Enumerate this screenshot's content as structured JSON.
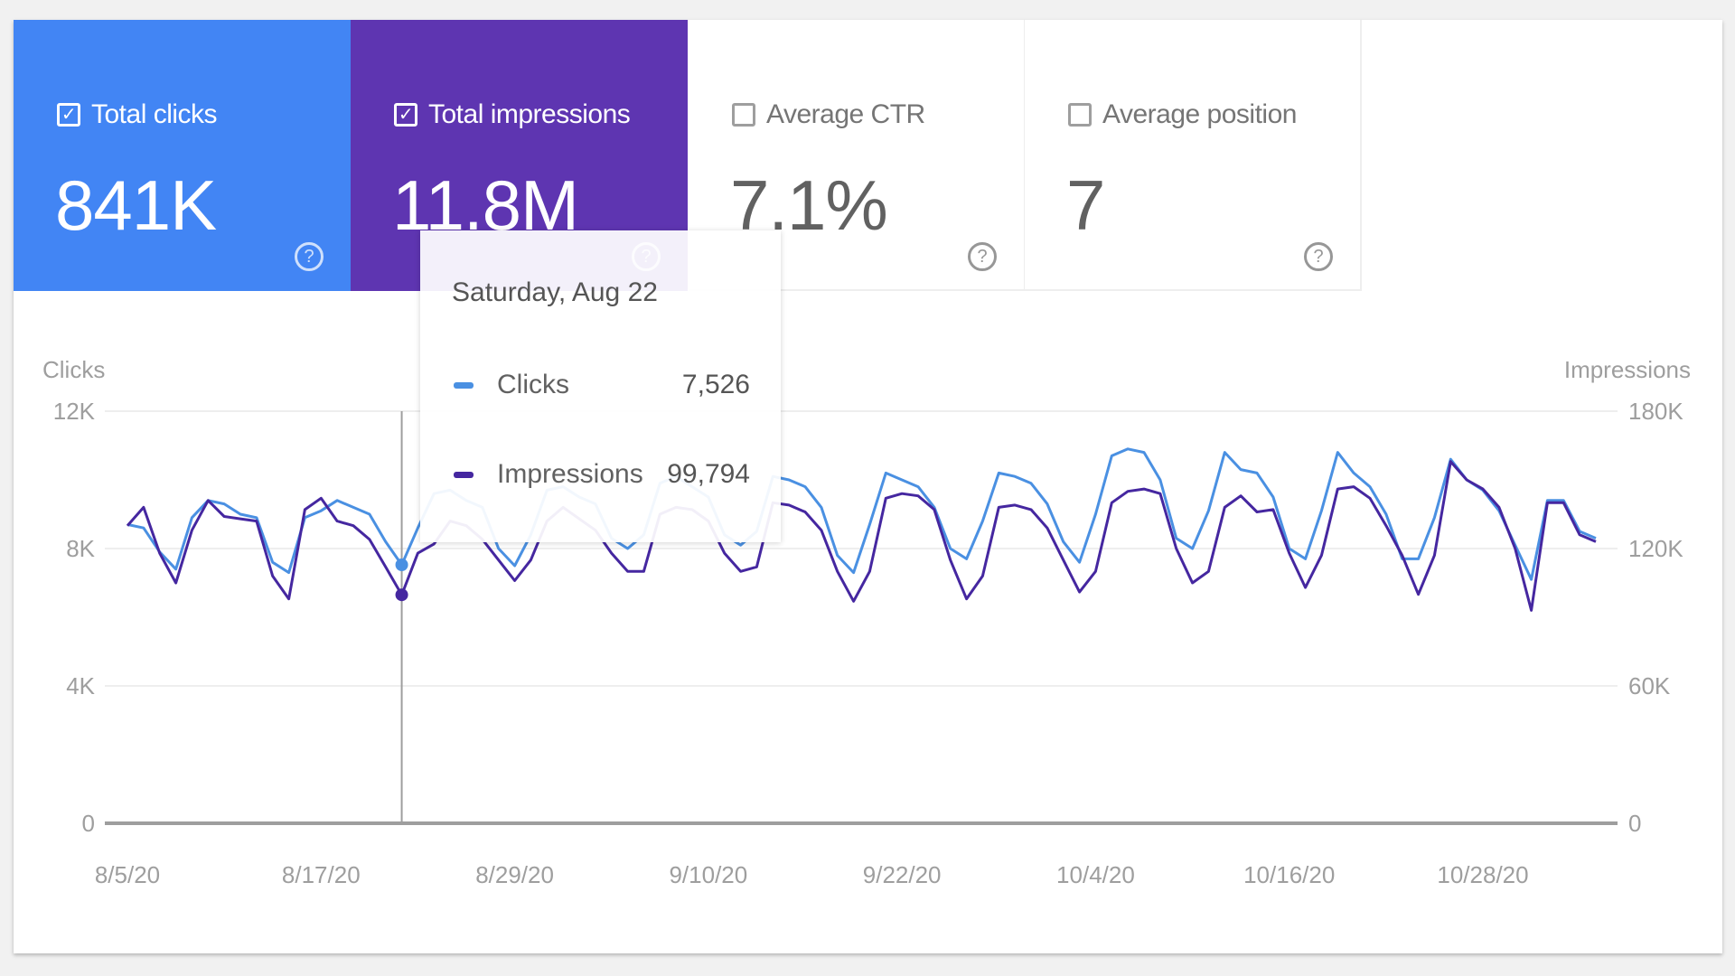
{
  "cards": [
    {
      "label": "Total clicks",
      "value": "841K",
      "checked": true,
      "color": "#4285f4"
    },
    {
      "label": "Total impressions",
      "value": "11.8M",
      "checked": true,
      "color": "#5e35b1"
    },
    {
      "label": "Average CTR",
      "value": "7.1%",
      "checked": false
    },
    {
      "label": "Average position",
      "value": "7",
      "checked": false
    }
  ],
  "help_icon": "?",
  "check_icon": "✓",
  "tooltip": {
    "title": "Saturday, Aug 22",
    "rows": [
      {
        "label": "Clicks",
        "value": "7,526",
        "color": "#4a90e2"
      },
      {
        "label": "Impressions",
        "value": "99,794",
        "color": "#4527a0"
      }
    ]
  },
  "chart_data": {
    "type": "line",
    "left_axis_label": "Clicks",
    "right_axis_label": "Impressions",
    "left_ticks": [
      "0",
      "4K",
      "8K",
      "12K"
    ],
    "left_tick_values": [
      0,
      4000,
      8000,
      12000
    ],
    "right_ticks": [
      "0",
      "60K",
      "120K",
      "180K"
    ],
    "right_tick_values": [
      0,
      60000,
      120000,
      180000
    ],
    "ylim_left": [
      0,
      12000
    ],
    "ylim_right": [
      0,
      180000
    ],
    "x_start": "8/5/20",
    "x_tick_labels": [
      "8/5/20",
      "8/17/20",
      "8/29/20",
      "9/10/20",
      "9/22/20",
      "10/4/20",
      "10/16/20",
      "10/28/20"
    ],
    "x_tick_day_index": [
      0,
      12,
      24,
      36,
      48,
      60,
      72,
      84
    ],
    "hover_day_index": 17,
    "grid": true,
    "series": [
      {
        "name": "Clicks",
        "axis": "left",
        "color": "#4a90e2",
        "values": [
          8700,
          8600,
          7900,
          7400,
          8900,
          9400,
          9300,
          9000,
          8900,
          7600,
          7300,
          8900,
          9100,
          9400,
          9200,
          9000,
          8200,
          7526,
          8600,
          9600,
          9700,
          9400,
          9200,
          8000,
          7500,
          8400,
          9700,
          9800,
          9500,
          9300,
          8300,
          8000,
          8400,
          9900,
          10100,
          9800,
          9500,
          8400,
          8100,
          8500,
          10100,
          10000,
          9800,
          9200,
          7800,
          7300,
          8700,
          10200,
          10000,
          9800,
          9200,
          8000,
          7700,
          8800,
          10200,
          10100,
          9900,
          9300,
          8200,
          7600,
          9000,
          10700,
          10900,
          10800,
          10000,
          8300,
          8000,
          9100,
          10800,
          10300,
          10200,
          9500,
          8000,
          7700,
          9100,
          10800,
          10200,
          9800,
          9000,
          7700,
          7700,
          8900,
          10600,
          10000,
          9700,
          9100,
          8100,
          7100,
          9400,
          9400,
          8500,
          8300
        ]
      },
      {
        "name": "Impressions",
        "axis": "right",
        "color": "#4527a0",
        "values": [
          130000,
          138000,
          118000,
          105000,
          128000,
          141000,
          134000,
          133000,
          132000,
          108000,
          98000,
          137000,
          142000,
          132000,
          130000,
          124000,
          112000,
          99794,
          118000,
          122000,
          132000,
          130000,
          124000,
          115000,
          106000,
          115000,
          132000,
          138000,
          133000,
          128000,
          118000,
          110000,
          110000,
          135000,
          138000,
          137000,
          132000,
          118000,
          110000,
          112000,
          140000,
          139000,
          136000,
          128000,
          110000,
          97000,
          110000,
          142000,
          144000,
          143000,
          137000,
          115000,
          98000,
          108000,
          138000,
          139000,
          137000,
          129000,
          115000,
          101000,
          110000,
          140000,
          145000,
          146000,
          144000,
          120000,
          105000,
          110000,
          138000,
          143000,
          136000,
          137000,
          118000,
          103000,
          117000,
          146000,
          147000,
          142000,
          130000,
          117000,
          100000,
          117000,
          158000,
          150000,
          146000,
          138000,
          120000,
          93000,
          140000,
          140000,
          126000,
          123000
        ]
      }
    ]
  }
}
